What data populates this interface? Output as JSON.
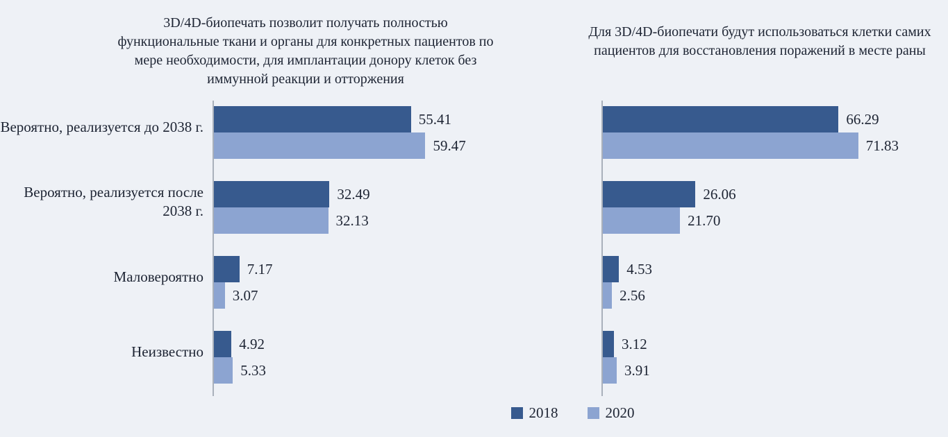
{
  "page": {
    "background": "#eef1f6",
    "text_color": "#1d2433",
    "axis_color": "#a9b0bb"
  },
  "legend": {
    "items": [
      {
        "label": "2018",
        "color": "#375a8e"
      },
      {
        "label": "2020",
        "color": "#8ca4d1"
      }
    ],
    "position": "bottom-center"
  },
  "chart_data": [
    {
      "type": "bar",
      "orientation": "horizontal",
      "title": "3D/4D-биопечать позволит получать полностью функциональные ткани и органы для конкретных пациентов по мере необходимости, для имплантации донору клеток без иммунной реакции и отторжения",
      "categories": [
        "Вероятно, реализуется до 2038 г.",
        "Вероятно, реализуется после 2038 г.",
        "Маловероятно",
        "Неизвестно"
      ],
      "series": [
        {
          "name": "2018",
          "color": "#375a8e",
          "values": [
            55.41,
            32.49,
            7.17,
            4.92
          ]
        },
        {
          "name": "2020",
          "color": "#8ca4d1",
          "values": [
            59.47,
            32.13,
            3.07,
            5.33
          ]
        }
      ],
      "show_category_labels": true,
      "value_labels_shown": true,
      "grid": false,
      "xlim": [
        0,
        80
      ]
    },
    {
      "type": "bar",
      "orientation": "horizontal",
      "title": "Для 3D/4D-биопечати будут использоваться клетки самих пациентов для восстановления поражений в месте раны",
      "categories": [
        "Вероятно, реализуется до 2038 г.",
        "Вероятно, реализуется после 2038 г.",
        "Маловероятно",
        "Неизвестно"
      ],
      "series": [
        {
          "name": "2018",
          "color": "#375a8e",
          "values": [
            66.29,
            26.06,
            4.53,
            3.12
          ]
        },
        {
          "name": "2020",
          "color": "#8ca4d1",
          "values": [
            71.83,
            21.7,
            2.56,
            3.91
          ]
        }
      ],
      "show_category_labels": false,
      "value_labels_shown": true,
      "grid": false,
      "xlim": [
        0,
        80
      ]
    }
  ]
}
